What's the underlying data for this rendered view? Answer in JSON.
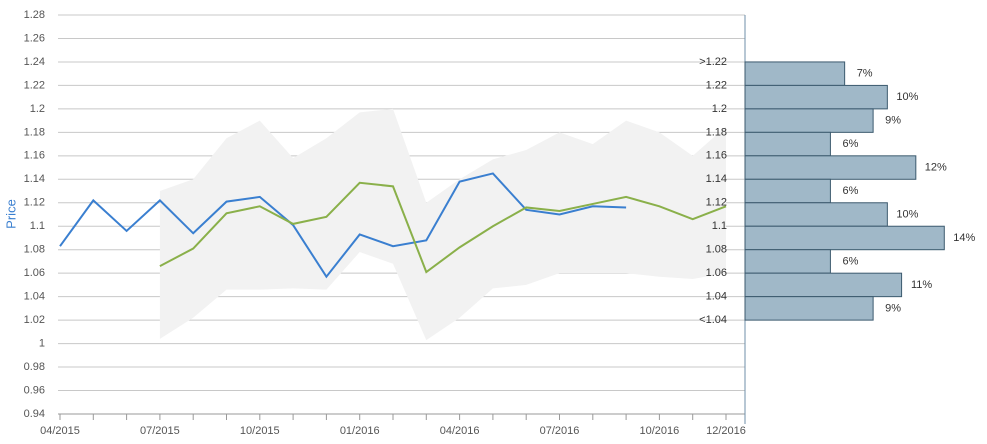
{
  "chart_data": [
    {
      "type": "line",
      "y_label": "Price",
      "categories": [
        "04/2015",
        null,
        null,
        "07/2015",
        null,
        null,
        "10/2015",
        null,
        null,
        "01/2016",
        null,
        null,
        "04/2016",
        null,
        null,
        "07/2016",
        null,
        null,
        "10/2016",
        null,
        "12/2016"
      ],
      "ylim": [
        0.94,
        1.28
      ],
      "yticks": [
        0.94,
        0.96,
        0.98,
        1,
        1.02,
        1.04,
        1.06,
        1.08,
        1.1,
        1.12,
        1.14,
        1.16,
        1.18,
        1.2,
        1.22,
        1.24,
        1.26,
        1.28
      ],
      "grid": true,
      "band": {
        "color": "#f2f2f2",
        "upper": [
          null,
          null,
          null,
          1.13,
          1.14,
          1.175,
          1.19,
          1.158,
          1.175,
          1.197,
          1.2,
          1.12,
          1.14,
          1.157,
          1.165,
          1.18,
          1.17,
          1.19,
          1.18,
          1.16,
          1.185
        ],
        "lower": [
          null,
          null,
          null,
          1.004,
          1.022,
          1.046,
          1.046,
          1.047,
          1.046,
          1.078,
          1.068,
          1.003,
          1.022,
          1.047,
          1.05,
          1.06,
          1.06,
          1.06,
          1.057,
          1.055,
          1.06
        ]
      },
      "series": [
        {
          "color": "#3a7fd0",
          "values": [
            1.083,
            1.122,
            1.096,
            1.122,
            1.094,
            1.121,
            1.125,
            1.101,
            1.057,
            1.093,
            1.083,
            1.088,
            1.138,
            1.145,
            1.114,
            1.11,
            1.117,
            1.116,
            null,
            null,
            null
          ]
        },
        {
          "color": "#8ab04a",
          "values": [
            null,
            null,
            null,
            1.066,
            1.081,
            1.111,
            1.117,
            1.102,
            1.108,
            1.137,
            1.134,
            1.061,
            1.082,
            1.1,
            1.116,
            1.113,
            1.119,
            1.125,
            1.117,
            1.106,
            1.117
          ]
        }
      ]
    },
    {
      "type": "histogram",
      "color": "#a0b8c8",
      "bins": [
        {
          "value": 1.24,
          "label": ">1.22"
        },
        1.22,
        1.2,
        1.18,
        1.16,
        1.14,
        1.12,
        1.1,
        1.08,
        1.06,
        1.04,
        {
          "value": 1.02,
          "label": "<1.04"
        }
      ],
      "values": [
        7,
        10,
        9,
        6,
        12,
        6,
        10,
        14,
        6,
        11,
        9
      ],
      "value_labels": [
        "7%",
        "10%",
        "9%",
        "6%",
        "12%",
        "6%",
        "10%",
        "14%",
        "6%",
        "11%",
        "9%"
      ],
      "xlim": [
        0,
        17
      ]
    }
  ]
}
